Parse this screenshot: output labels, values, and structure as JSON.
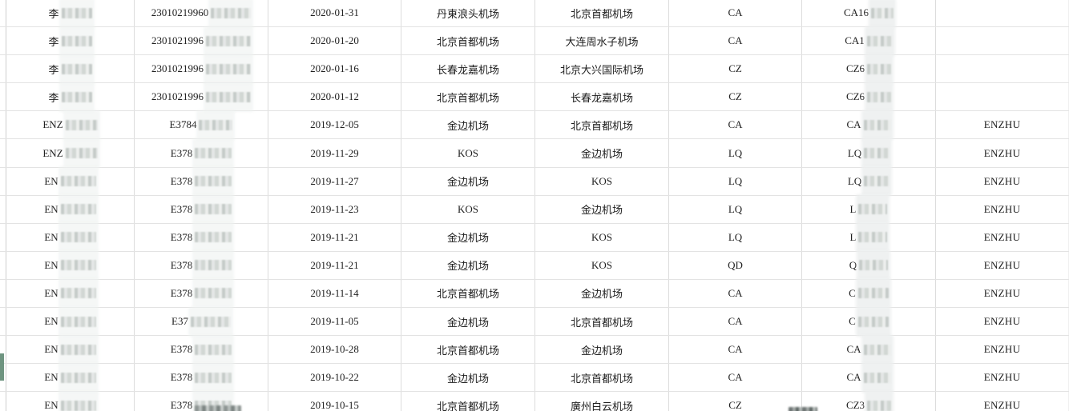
{
  "colors": {
    "highlight_green": "#6e9480",
    "grid_line_horizontal": "#e3e3e3",
    "grid_line_vertical": "#dcdcdc",
    "table_edge": "#cfcfcf",
    "text": "#202020"
  },
  "table": {
    "rows": [
      {
        "name": "李",
        "name_mask_w": 38,
        "id": "23010219960",
        "id_mask_w": 50,
        "date": "2020-01-31",
        "departure": "丹東浪头机场",
        "arrival": "北京首都机场",
        "airline": "CA",
        "flight": "CA16",
        "flight_mask_w": 28,
        "pinyin": "",
        "highlighted": false
      },
      {
        "name": "李",
        "name_mask_w": 38,
        "id": "2301021996",
        "id_mask_w": 56,
        "date": "2020-01-20",
        "departure": "北京首都机场",
        "arrival": "大连周水子机场",
        "airline": "CA",
        "flight": "CA1",
        "flight_mask_w": 32,
        "pinyin": "",
        "highlighted": false
      },
      {
        "name": "李",
        "name_mask_w": 38,
        "id": "2301021996",
        "id_mask_w": 56,
        "date": "2020-01-16",
        "departure": "长春龙嘉机场",
        "arrival": "北京大兴国际机场",
        "airline": "CZ",
        "flight": "CZ6",
        "flight_mask_w": 30,
        "pinyin": "",
        "highlighted": false
      },
      {
        "name": "李",
        "name_mask_w": 38,
        "id": "2301021996",
        "id_mask_w": 56,
        "date": "2020-01-12",
        "departure": "北京首都机场",
        "arrival": "长春龙嘉机场",
        "airline": "CZ",
        "flight": "CZ6",
        "flight_mask_w": 30,
        "pinyin": "",
        "highlighted": false
      },
      {
        "name": "ENZ",
        "name_mask_w": 40,
        "id": "E3784",
        "id_mask_w": 42,
        "date": "2019-12-05",
        "departure": "金边机场",
        "arrival": "北京首都机场",
        "airline": "CA",
        "flight": "CA",
        "flight_mask_w": 34,
        "pinyin": "ENZHU",
        "highlighted": false
      },
      {
        "name": "ENZ",
        "name_mask_w": 40,
        "id": "E378",
        "id_mask_w": 46,
        "date": "2019-11-29",
        "departure": "KOS",
        "arrival": "金边机场",
        "airline": "LQ",
        "flight": "LQ",
        "flight_mask_w": 32,
        "pinyin": "ENZHU",
        "highlighted": false
      },
      {
        "name": "EN",
        "name_mask_w": 44,
        "id": "E378",
        "id_mask_w": 46,
        "date": "2019-11-27",
        "departure": "金边机场",
        "arrival": "KOS",
        "airline": "LQ",
        "flight": "LQ",
        "flight_mask_w": 32,
        "pinyin": "ENZHU",
        "highlighted": false
      },
      {
        "name": "EN",
        "name_mask_w": 44,
        "id": "E378",
        "id_mask_w": 46,
        "date": "2019-11-23",
        "departure": "KOS",
        "arrival": "金边机场",
        "airline": "LQ",
        "flight": "L",
        "flight_mask_w": 36,
        "pinyin": "ENZHU",
        "highlighted": false
      },
      {
        "name": "EN",
        "name_mask_w": 44,
        "id": "E378",
        "id_mask_w": 46,
        "date": "2019-11-21",
        "departure": "金边机场",
        "arrival": "KOS",
        "airline": "LQ",
        "flight": "L",
        "flight_mask_w": 36,
        "pinyin": "ENZHU",
        "highlighted": false
      },
      {
        "name": "EN",
        "name_mask_w": 44,
        "id": "E378",
        "id_mask_w": 46,
        "date": "2019-11-21",
        "departure": "金边机场",
        "arrival": "KOS",
        "airline": "QD",
        "flight": "Q",
        "flight_mask_w": 36,
        "pinyin": "ENZHU",
        "highlighted": false
      },
      {
        "name": "EN",
        "name_mask_w": 44,
        "id": "E378",
        "id_mask_w": 46,
        "date": "2019-11-14",
        "departure": "北京首都机场",
        "arrival": "金边机场",
        "airline": "CA",
        "flight": "C",
        "flight_mask_w": 38,
        "pinyin": "ENZHU",
        "highlighted": false
      },
      {
        "name": "EN",
        "name_mask_w": 44,
        "id": "E37",
        "id_mask_w": 50,
        "date": "2019-11-05",
        "departure": "金边机场",
        "arrival": "北京首都机场",
        "airline": "CA",
        "flight": "C",
        "flight_mask_w": 38,
        "pinyin": "ENZHU",
        "highlighted": false
      },
      {
        "name": "EN",
        "name_mask_w": 44,
        "id": "E378",
        "id_mask_w": 46,
        "date": "2019-10-28",
        "departure": "北京首都机场",
        "arrival": "金边机场",
        "airline": "CA",
        "flight": "CA",
        "flight_mask_w": 34,
        "pinyin": "ENZHU",
        "highlighted": false
      },
      {
        "name": "EN",
        "name_mask_w": 44,
        "id": "E378",
        "id_mask_w": 46,
        "date": "2019-10-22",
        "departure": "金边机场",
        "arrival": "北京首都机场",
        "airline": "CA",
        "flight": "CA",
        "flight_mask_w": 34,
        "pinyin": "ENZHU",
        "highlighted": true
      },
      {
        "name": "EN",
        "name_mask_w": 44,
        "id": "E378",
        "id_mask_w": 46,
        "date": "2019-10-15",
        "departure": "北京首都机场",
        "arrival": "廣州白云机场",
        "airline": "CZ",
        "flight": "CZ3",
        "flight_mask_w": 30,
        "pinyin": "ENZHU",
        "highlighted": false
      }
    ]
  },
  "partial_next_row": {
    "id_redacted": true,
    "flight_redacted": true
  }
}
